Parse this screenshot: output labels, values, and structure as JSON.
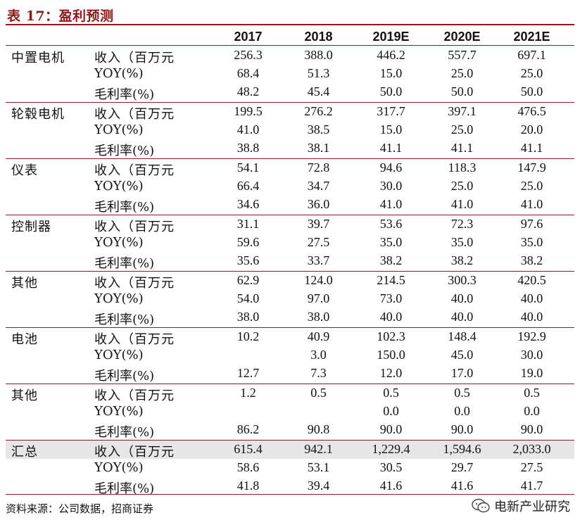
{
  "title": "表 17：盈利预测",
  "columns": [
    "2017",
    "2018",
    "2019E",
    "2020E",
    "2021E"
  ],
  "metric_labels": [
    "收入（百万元",
    "YOY(%)",
    "毛利率(%)"
  ],
  "groups": [
    {
      "name": "中置电机",
      "rows": [
        [
          "256.3",
          "388.0",
          "446.2",
          "557.7",
          "697.1"
        ],
        [
          "68.4",
          "51.3",
          "15.0",
          "25.0",
          "25.0"
        ],
        [
          "48.2",
          "45.4",
          "50.0",
          "50.0",
          "50.0"
        ]
      ]
    },
    {
      "name": "轮毂电机",
      "rows": [
        [
          "199.5",
          "276.2",
          "317.7",
          "397.1",
          "476.5"
        ],
        [
          "41.0",
          "38.5",
          "15.0",
          "25.0",
          "20.0"
        ],
        [
          "38.8",
          "38.1",
          "41.1",
          "41.1",
          "41.1"
        ]
      ]
    },
    {
      "name": "仪表",
      "rows": [
        [
          "54.1",
          "72.8",
          "94.6",
          "118.3",
          "147.9"
        ],
        [
          "66.4",
          "34.7",
          "30.0",
          "25.0",
          "25.0"
        ],
        [
          "34.6",
          "36.0",
          "41.0",
          "41.0",
          "41.0"
        ]
      ]
    },
    {
      "name": "控制器",
      "rows": [
        [
          "31.1",
          "39.7",
          "53.6",
          "72.3",
          "97.6"
        ],
        [
          "59.6",
          "27.5",
          "35.0",
          "35.0",
          "35.0"
        ],
        [
          "35.6",
          "33.7",
          "38.2",
          "38.2",
          "38.2"
        ]
      ]
    },
    {
      "name": "其他",
      "rows": [
        [
          "62.9",
          "124.0",
          "214.5",
          "300.3",
          "420.5"
        ],
        [
          "54.0",
          "97.0",
          "73.0",
          "40.0",
          "40.0"
        ],
        [
          "38.0",
          "38.0",
          "40.0",
          "40.0",
          "40.0"
        ]
      ]
    },
    {
      "name": "电池",
      "rows": [
        [
          "10.2",
          "40.9",
          "102.3",
          "148.4",
          "192.9"
        ],
        [
          "",
          "3.0",
          "150.0",
          "45.0",
          "30.0"
        ],
        [
          "12.7",
          "7.3",
          "12.0",
          "17.0",
          "19.0"
        ]
      ]
    },
    {
      "name": "其他",
      "rows": [
        [
          "1.2",
          "0.5",
          "0.5",
          "0.5",
          "0.5"
        ],
        [
          "",
          "",
          "0.0",
          "0.0",
          "0.0"
        ],
        [
          "86.2",
          "90.8",
          "90.0",
          "90.0",
          "90.0"
        ]
      ]
    },
    {
      "name": "汇总",
      "rows": [
        [
          "615.4",
          "942.1",
          "1,229.4",
          "1,594.6",
          "2,033.0"
        ],
        [
          "58.6",
          "53.1",
          "30.5",
          "29.7",
          "27.5"
        ],
        [
          "41.8",
          "39.4",
          "41.6",
          "41.6",
          "41.7"
        ]
      ]
    }
  ],
  "source": "资料来源：公司数据，招商证券",
  "watermark": "电新产业研究",
  "colors": {
    "accent": "#8b1a1a",
    "shade": "#e6e6e6"
  }
}
